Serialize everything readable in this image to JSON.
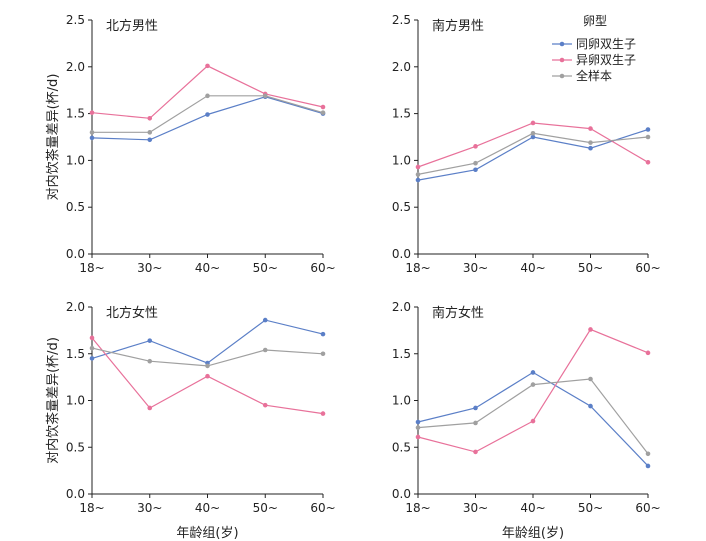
{
  "chart_data": [
    {
      "type": "line",
      "title": "北方男性",
      "categories": [
        "18~",
        "30~",
        "40~",
        "50~",
        "60~"
      ],
      "xlabel": "",
      "ylabel": "对内饮茶量差异(杯/d)",
      "ylim": [
        0,
        2.5
      ],
      "yticks": [
        "0.0",
        "0.5",
        "1.0",
        "1.5",
        "2.0",
        "2.5"
      ],
      "series": [
        {
          "name": "同卵双生子",
          "values": [
            1.24,
            1.22,
            1.49,
            1.68,
            1.5
          ]
        },
        {
          "name": "异卵双生子",
          "values": [
            1.51,
            1.45,
            2.01,
            1.71,
            1.57
          ]
        },
        {
          "name": "全样本",
          "values": [
            1.3,
            1.3,
            1.69,
            1.69,
            1.51
          ]
        }
      ]
    },
    {
      "type": "line",
      "title": "南方男性",
      "categories": [
        "18~",
        "30~",
        "40~",
        "50~",
        "60~"
      ],
      "xlabel": "",
      "ylabel": "",
      "ylim": [
        0,
        2.5
      ],
      "yticks": [
        "0.0",
        "0.5",
        "1.0",
        "1.5",
        "2.0",
        "2.5"
      ],
      "series": [
        {
          "name": "同卵双生子",
          "values": [
            0.79,
            0.9,
            1.25,
            1.13,
            1.33
          ]
        },
        {
          "name": "异卵双生子",
          "values": [
            0.93,
            1.15,
            1.4,
            1.34,
            0.98
          ]
        },
        {
          "name": "全样本",
          "values": [
            0.85,
            0.97,
            1.29,
            1.19,
            1.25
          ]
        }
      ]
    },
    {
      "type": "line",
      "title": "北方女性",
      "categories": [
        "18~",
        "30~",
        "40~",
        "50~",
        "60~"
      ],
      "xlabel": "年龄组(岁)",
      "ylabel": "对内饮茶量差异(杯/d)",
      "ylim": [
        0,
        2.0
      ],
      "yticks": [
        "0.0",
        "0.5",
        "1.0",
        "1.5",
        "2.0"
      ],
      "series": [
        {
          "name": "同卵双生子",
          "values": [
            1.45,
            1.64,
            1.4,
            1.86,
            1.71
          ]
        },
        {
          "name": "异卵双生子",
          "values": [
            1.67,
            0.92,
            1.26,
            0.95,
            0.86
          ]
        },
        {
          "name": "全样本",
          "values": [
            1.56,
            1.42,
            1.37,
            1.54,
            1.5
          ]
        }
      ]
    },
    {
      "type": "line",
      "title": "南方女性",
      "categories": [
        "18~",
        "30~",
        "40~",
        "50~",
        "60~"
      ],
      "xlabel": "年龄组(岁)",
      "ylabel": "",
      "ylim": [
        0,
        2.0
      ],
      "yticks": [
        "0.0",
        "0.5",
        "1.0",
        "1.5",
        "2.0"
      ],
      "series": [
        {
          "name": "同卵双生子",
          "values": [
            0.77,
            0.92,
            1.3,
            0.94,
            0.3
          ]
        },
        {
          "name": "异卵双生子",
          "values": [
            0.61,
            0.45,
            0.78,
            1.76,
            1.51
          ]
        },
        {
          "name": "全样本",
          "values": [
            0.71,
            0.76,
            1.17,
            1.23,
            0.43
          ]
        }
      ]
    }
  ],
  "legend": {
    "title": "卵型",
    "entries": [
      "同卵双生子",
      "异卵双生子",
      "全样本"
    ]
  },
  "colors": {
    "series": [
      "#5b7fc7",
      "#e8719a",
      "#a0a0a0"
    ],
    "axis": "#222222"
  }
}
